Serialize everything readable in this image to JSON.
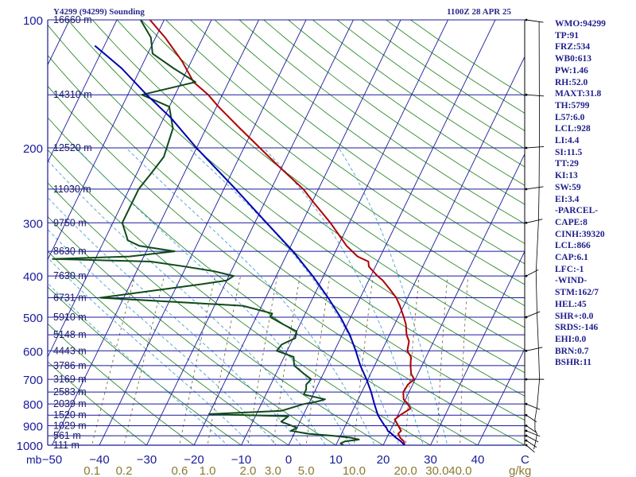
{
  "header": {
    "station": "Y4299 (94299) Sounding",
    "datetime": "1100Z 28 APR 25"
  },
  "indices": [
    "WMO:94299",
    "TP:91",
    "FRZ:534",
    "WB0:613",
    "PW:1.46",
    "RH:52.0",
    "MAXT:31.8",
    "TH:5799",
    "L57:6.0",
    "LCL:928",
    "LI:4.4",
    "SI:11.5",
    "TT:29",
    "KI:13",
    "SW:59",
    "EI:3.4",
    "-PARCEL-",
    "CAPE:8",
    "CINH:39320",
    "LCL:866",
    "CAP:6.1",
    "LFC:-1",
    "-WIND-",
    "STM:162/7",
    "HEL:45",
    "SHR+:0.0",
    "SRDS:-146",
    "EHI:0.0",
    "BRN:0.7",
    "BSHR:11"
  ],
  "colors": {
    "isobar": "#1a1a9a",
    "isotherm": "#1a1a9a",
    "dry_adiabat": "#2e8b2e",
    "moist_adiabat": "#4aa0d0",
    "mixing_ratio": "#6b5a2a",
    "temperature": "#b00000",
    "dewpoint": "#0f4a1a",
    "parcel": "#0000b0",
    "bottom_labels": "#8a7a30",
    "wind_barbs": "#000000"
  },
  "chart_data": {
    "type": "skew-t log-p",
    "ylabel": "mb",
    "y_scale": "log",
    "ylim": [
      1000,
      100
    ],
    "xlim": [
      -50,
      50
    ],
    "xlabel_units_right": "C",
    "pressure_ticks": [
      "100",
      "200",
      "300",
      "400",
      "500",
      "600",
      "700",
      "800",
      "900",
      "1000"
    ],
    "temperature_ticks": [
      "−50",
      "−40",
      "−30",
      "−20",
      "−10",
      "0",
      "10",
      "20",
      "30",
      "40"
    ],
    "mixing_ratio_ticks": [
      "0.1",
      "0.2",
      "0.6",
      "1.0",
      "2.0",
      "3.0",
      "5.0",
      "10.0",
      "20.0",
      "30.0",
      "40.0"
    ],
    "mixing_ratio_units": "g/kg",
    "height_labels": [
      {
        "p": 100,
        "label": "16660 m"
      },
      {
        "p": 150,
        "label": "14310 m"
      },
      {
        "p": 200,
        "label": "12520 m"
      },
      {
        "p": 250,
        "label": "11030 m"
      },
      {
        "p": 300,
        "label": "9750 m"
      },
      {
        "p": 350,
        "label": "8630 m"
      },
      {
        "p": 400,
        "label": "7630 m"
      },
      {
        "p": 450,
        "label": "6731 m"
      },
      {
        "p": 500,
        "label": "5910 m"
      },
      {
        "p": 550,
        "label": "5148 m"
      },
      {
        "p": 600,
        "label": "4443 m"
      },
      {
        "p": 650,
        "label": "3786 m"
      },
      {
        "p": 700,
        "label": "3169 m"
      },
      {
        "p": 750,
        "label": "2583 m"
      },
      {
        "p": 800,
        "label": "2039 m"
      },
      {
        "p": 850,
        "label": "1520 m"
      },
      {
        "p": 900,
        "label": "1029 m"
      },
      {
        "p": 950,
        "label": "561 m"
      },
      {
        "p": 1000,
        "label": "111 m"
      }
    ],
    "series": [
      {
        "values": [
          [
            1000,
            24.5
          ],
          [
            980,
            24.0
          ],
          [
            960,
            22.8
          ],
          [
            940,
            22.0
          ],
          [
            925,
            22.3
          ],
          [
            900,
            21.2
          ],
          [
            870,
            19.8
          ],
          [
            850,
            20.5
          ],
          [
            820,
            22.0
          ],
          [
            800,
            21.0
          ],
          [
            780,
            19.6
          ],
          [
            750,
            18.8
          ],
          [
            720,
            19.0
          ],
          [
            700,
            19.8
          ],
          [
            680,
            18.6
          ],
          [
            650,
            17.6
          ],
          [
            620,
            16.8
          ],
          [
            600,
            15.4
          ],
          [
            570,
            14.8
          ],
          [
            550,
            13.6
          ],
          [
            520,
            12.4
          ],
          [
            500,
            11.2
          ],
          [
            470,
            9.2
          ],
          [
            450,
            7.6
          ],
          [
            430,
            5.4
          ],
          [
            410,
            3.0
          ],
          [
            400,
            1.4
          ],
          [
            390,
            0.0
          ],
          [
            380,
            -1.4
          ],
          [
            370,
            -2.0
          ],
          [
            360,
            -4.8
          ],
          [
            340,
            -8.2
          ],
          [
            320,
            -11.0
          ],
          [
            300,
            -14.0
          ],
          [
            270,
            -19.4
          ],
          [
            250,
            -23.2
          ],
          [
            220,
            -31.0
          ],
          [
            200,
            -36.6
          ],
          [
            180,
            -42.8
          ],
          [
            160,
            -49.6
          ],
          [
            150,
            -53.0
          ],
          [
            140,
            -57.4
          ],
          [
            125,
            -62.0
          ],
          [
            110,
            -68.0
          ],
          [
            100,
            -73.0
          ]
        ]
      },
      {
        "values": [
          [
            1000,
            11.6
          ],
          [
            990,
            10.8
          ],
          [
            980,
            11.5
          ],
          [
            970,
            14.3
          ],
          [
            960,
            12.3
          ],
          [
            950,
            8.4
          ],
          [
            940,
            3.0
          ],
          [
            925,
            -1.0
          ],
          [
            910,
            0.0
          ],
          [
            880,
            -4.0
          ],
          [
            855,
            -3.0
          ],
          [
            845,
            -20.0
          ],
          [
            830,
            -5.0
          ],
          [
            800,
            -1.0
          ],
          [
            790,
            1.5
          ],
          [
            780,
            3.0
          ],
          [
            760,
            -2.0
          ],
          [
            740,
            -2.0
          ],
          [
            720,
            -2.5
          ],
          [
            700,
            -2.0
          ],
          [
            680,
            -4.0
          ],
          [
            650,
            -7.0
          ],
          [
            620,
            -8.0
          ],
          [
            600,
            -12.2
          ],
          [
            580,
            -11.8
          ],
          [
            560,
            -9.6
          ],
          [
            540,
            -10.0
          ],
          [
            520,
            -13.5
          ],
          [
            500,
            -17.0
          ],
          [
            490,
            -17.0
          ],
          [
            470,
            -24.0
          ],
          [
            450,
            -55.0
          ],
          [
            420,
            -36.0
          ],
          [
            410,
            -30.0
          ],
          [
            400,
            -29.0
          ],
          [
            390,
            -33.6
          ],
          [
            380,
            -40.4
          ],
          [
            370,
            -48.0
          ],
          [
            365,
            -69.0
          ],
          [
            360,
            -53.0
          ],
          [
            350,
            -44.0
          ],
          [
            340,
            -52.0
          ],
          [
            330,
            -55.0
          ],
          [
            300,
            -58.0
          ],
          [
            270,
            -58.0
          ],
          [
            250,
            -58.0
          ],
          [
            230,
            -57.0
          ],
          [
            210,
            -56.0
          ],
          [
            180,
            -57.0
          ],
          [
            160,
            -60.0
          ],
          [
            150,
            -67.0
          ],
          [
            140,
            -57.0
          ],
          [
            130,
            -63.0
          ],
          [
            120,
            -69.0
          ],
          [
            110,
            -71.0
          ],
          [
            100,
            -75.0
          ]
        ]
      },
      {
        "values": [
          [
            1000,
            24.5
          ],
          [
            980,
            23.4
          ],
          [
            960,
            21.9
          ],
          [
            940,
            20.6
          ],
          [
            925,
            19.5
          ],
          [
            910,
            18.9
          ],
          [
            900,
            18.3
          ],
          [
            870,
            16.8
          ],
          [
            850,
            15.8
          ],
          [
            800,
            13.9
          ],
          [
            750,
            12.0
          ],
          [
            700,
            9.7
          ],
          [
            650,
            7.0
          ],
          [
            600,
            4.5
          ],
          [
            550,
            1.6
          ],
          [
            500,
            -2.2
          ],
          [
            450,
            -6.8
          ],
          [
            400,
            -12.3
          ],
          [
            350,
            -19.0
          ],
          [
            300,
            -27.5
          ],
          [
            250,
            -37.5
          ],
          [
            200,
            -50.0
          ],
          [
            170,
            -58.5
          ],
          [
            150,
            -66.0
          ],
          [
            130,
            -74.0
          ],
          [
            115,
            -82.0
          ]
        ]
      }
    ],
    "wind_profile": [
      {
        "p": 1000,
        "dir": 170,
        "spd": 10
      },
      {
        "p": 975,
        "dir": 160,
        "spd": 10
      },
      {
        "p": 950,
        "dir": 150,
        "spd": 10
      },
      {
        "p": 925,
        "dir": 140,
        "spd": 10
      },
      {
        "p": 900,
        "dir": 160,
        "spd": 5
      },
      {
        "p": 850,
        "dir": 200,
        "spd": 5
      },
      {
        "p": 800,
        "dir": 220,
        "spd": 5
      },
      {
        "p": 700,
        "dir": 270,
        "spd": 5
      },
      {
        "p": 600,
        "dir": 300,
        "spd": 5
      },
      {
        "p": 500,
        "dir": 320,
        "spd": 10
      },
      {
        "p": 400,
        "dir": 330,
        "spd": 10
      },
      {
        "p": 300,
        "dir": 300,
        "spd": 10
      },
      {
        "p": 250,
        "dir": 290,
        "spd": 10
      },
      {
        "p": 200,
        "dir": 280,
        "spd": 10
      },
      {
        "p": 150,
        "dir": 260,
        "spd": 10
      },
      {
        "p": 100,
        "dir": 250,
        "spd": 15
      }
    ]
  }
}
